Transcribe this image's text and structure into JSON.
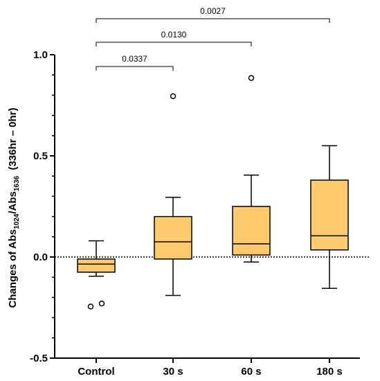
{
  "chart_data": {
    "type": "box",
    "categories": [
      "Control",
      "30 s",
      "60 s",
      "180 s"
    ],
    "ylabel": {
      "prefix": "Changes of Abs",
      "sub1": "1024",
      "mid": "/Abs",
      "sub2": "1636",
      "suffix": "  (336hr – 0hr)"
    },
    "ylim": [
      -0.5,
      1.0
    ],
    "yticks": [
      -0.5,
      0.0,
      0.5,
      1.0
    ],
    "ytick_labels": [
      "-0.5",
      "0.0",
      "0.5",
      "1.0"
    ],
    "reference_line": {
      "y": 0.0,
      "style": "dotted"
    },
    "box_color": "#FDCB6E",
    "boxes": [
      {
        "category": "Control",
        "whisker_low": -0.095,
        "q1": -0.075,
        "median": -0.035,
        "q3": -0.01,
        "whisker_high": 0.08,
        "outliers": [
          -0.245,
          -0.23
        ]
      },
      {
        "category": "30 s",
        "whisker_low": -0.19,
        "q1": -0.01,
        "median": 0.075,
        "q3": 0.2,
        "whisker_high": 0.295,
        "outliers": [
          0.795
        ]
      },
      {
        "category": "60 s",
        "whisker_low": -0.025,
        "q1": 0.01,
        "median": 0.065,
        "q3": 0.25,
        "whisker_high": 0.405,
        "outliers": [
          0.885
        ]
      },
      {
        "category": "180 s",
        "whisker_low": -0.155,
        "q1": 0.035,
        "median": 0.105,
        "q3": 0.38,
        "whisker_high": 0.55,
        "outliers": []
      }
    ],
    "comparisons": [
      {
        "from": "Control",
        "to": "30 s",
        "label": "0.0337"
      },
      {
        "from": "Control",
        "to": "60 s",
        "label": "0.0130"
      },
      {
        "from": "Control",
        "to": "180 s",
        "label": "0.0027"
      }
    ]
  }
}
